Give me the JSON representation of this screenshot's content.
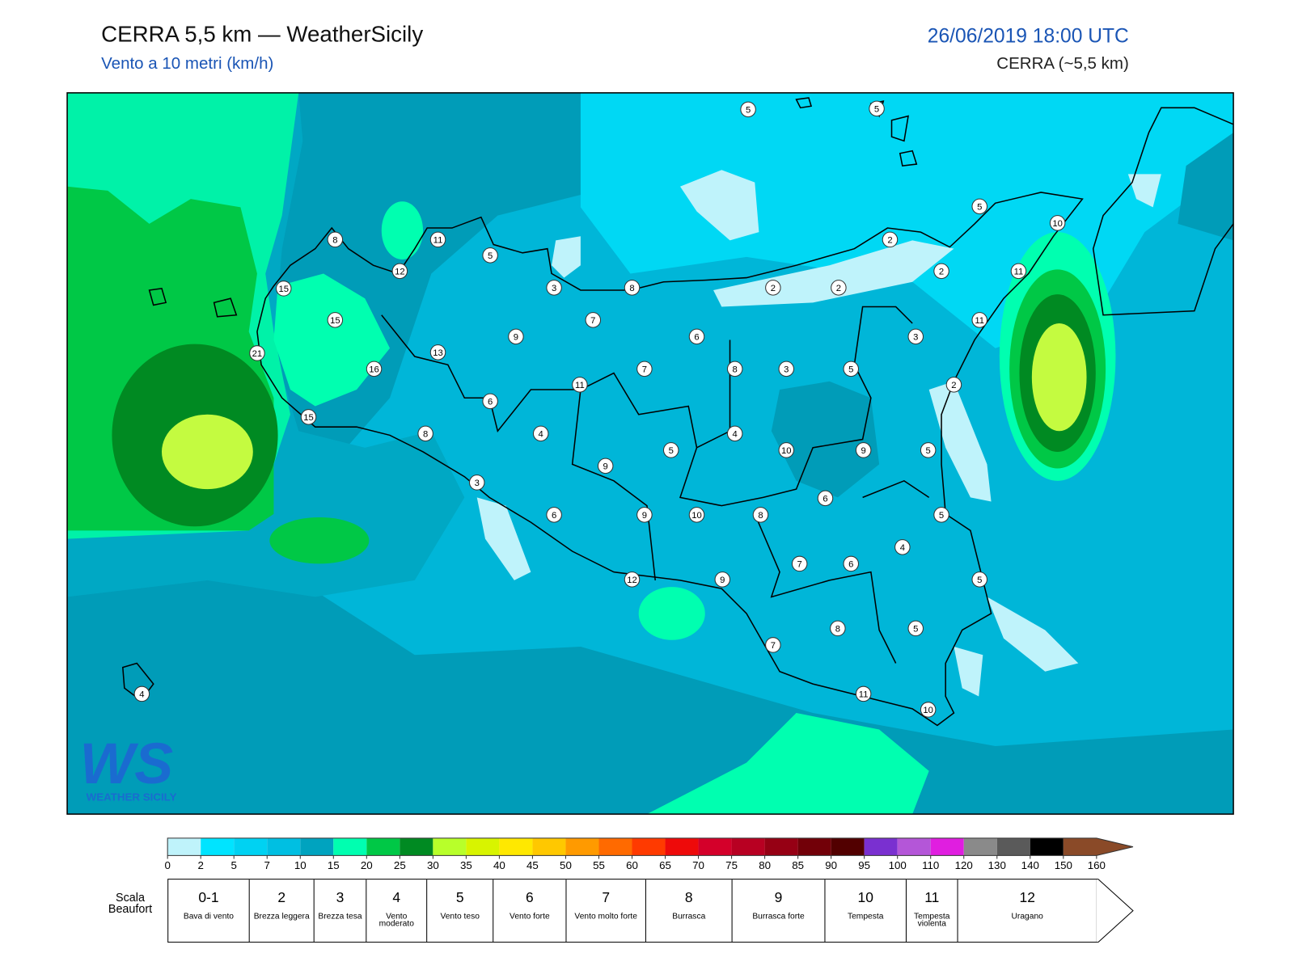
{
  "header": {
    "title": "CERRA 5,5 km — WeatherSicily",
    "subtitle": "Vento a 10 metri (km/h)",
    "datetime": "26/06/2019 18:00 UTC",
    "model": "CERRA (~5,5 km)"
  },
  "map": {
    "stations": [
      {
        "value": 5
      },
      {
        "value": 5
      },
      {
        "value": 5
      },
      {
        "value": 10
      },
      {
        "value": 8
      },
      {
        "value": 11
      },
      {
        "value": 5
      },
      {
        "value": 2
      },
      {
        "value": 12
      },
      {
        "value": 2
      },
      {
        "value": 11
      },
      {
        "value": 15
      },
      {
        "value": 3
      },
      {
        "value": 8
      },
      {
        "value": 2
      },
      {
        "value": 2
      },
      {
        "value": 15
      },
      {
        "value": 7
      },
      {
        "value": 11
      },
      {
        "value": 9
      },
      {
        "value": 6
      },
      {
        "value": 3
      },
      {
        "value": 21
      },
      {
        "value": 13
      },
      {
        "value": 16
      },
      {
        "value": 7
      },
      {
        "value": 8
      },
      {
        "value": 3
      },
      {
        "value": 5
      },
      {
        "value": 2
      },
      {
        "value": 11
      },
      {
        "value": 6
      },
      {
        "value": 15
      },
      {
        "value": 8
      },
      {
        "value": 4
      },
      {
        "value": 4
      },
      {
        "value": 5
      },
      {
        "value": 10
      },
      {
        "value": 9
      },
      {
        "value": 5
      },
      {
        "value": 3
      },
      {
        "value": 9
      },
      {
        "value": 6
      },
      {
        "value": 6
      },
      {
        "value": 9
      },
      {
        "value": 10
      },
      {
        "value": 8
      },
      {
        "value": 5
      },
      {
        "value": 4
      },
      {
        "value": 7
      },
      {
        "value": 6
      },
      {
        "value": 12
      },
      {
        "value": 9
      },
      {
        "value": 5
      },
      {
        "value": 8
      },
      {
        "value": 5
      },
      {
        "value": 7
      },
      {
        "value": 4
      },
      {
        "value": 11
      },
      {
        "value": 10
      }
    ],
    "logo": {
      "mark": "WS",
      "text": "WEATHER SICILY"
    }
  },
  "colorbar": {
    "ticks": [
      0,
      2,
      5,
      7,
      10,
      15,
      20,
      25,
      30,
      35,
      40,
      45,
      50,
      55,
      60,
      65,
      70,
      75,
      80,
      85,
      90,
      95,
      100,
      110,
      120,
      130,
      140,
      150,
      160
    ],
    "colors": [
      "#bff3fb",
      "#00e4ff",
      "#00d2f2",
      "#00bfe2",
      "#00a3bf",
      "#00ffb0",
      "#00c846",
      "#008a22",
      "#b8ff2a",
      "#d8f400",
      "#ffe800",
      "#ffc800",
      "#ff9a00",
      "#ff6a00",
      "#ff3a00",
      "#ee0a0a",
      "#d4002a",
      "#b80022",
      "#960014",
      "#720008",
      "#520000",
      "#7a30d0",
      "#b456d8",
      "#e01ee0",
      "#8a8a8a",
      "#5a5a5a",
      "#000000",
      "#8a4a28",
      "#cc8848"
    ]
  },
  "beaufort": {
    "label": "Scala Beaufort",
    "classes": [
      {
        "force": "0-1",
        "label": "Bava di vento"
      },
      {
        "force": 2,
        "label": "Brezza leggera"
      },
      {
        "force": 3,
        "label": "Brezza tesa"
      },
      {
        "force": 4,
        "label": "Vento moderato"
      },
      {
        "force": 5,
        "label": "Vento teso"
      },
      {
        "force": 6,
        "label": "Vento forte"
      },
      {
        "force": 7,
        "label": "Vento molto forte"
      },
      {
        "force": 8,
        "label": "Burrasca"
      },
      {
        "force": 9,
        "label": "Burrasca forte"
      },
      {
        "force": 10,
        "label": "Tempesta"
      },
      {
        "force": 11,
        "label": "Tempesta violenta"
      },
      {
        "force": 12,
        "label": "Uragano"
      }
    ]
  }
}
